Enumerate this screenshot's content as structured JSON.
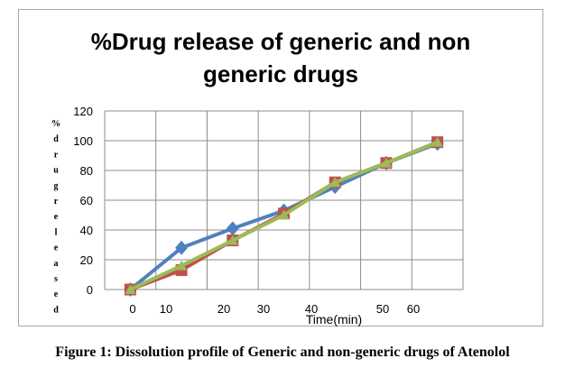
{
  "chart_data": {
    "type": "line",
    "title_lines": [
      "%Drug release of  generic and non",
      "generic drugs"
    ],
    "ylabel_chars": [
      "%",
      "d",
      "r",
      "u",
      "g",
      "r",
      "e",
      "l",
      "e",
      "a",
      "s",
      "e",
      "d"
    ],
    "xlabel": "Time(min)",
    "ylim": [
      0,
      120
    ],
    "yticks": [
      "0",
      "20",
      "40",
      "60",
      "80",
      "100",
      "120"
    ],
    "xticks": [
      "0",
      "10",
      "20",
      "30",
      "40",
      "50",
      "60"
    ],
    "categories": [
      "0",
      "10",
      "20",
      "30",
      "40",
      "50",
      "60"
    ],
    "grid": true,
    "series": [
      {
        "color": "#4f81bd",
        "marker": "diamond",
        "values": [
          0,
          28,
          41,
          53,
          69,
          85,
          98
        ]
      },
      {
        "color": "#c0504d",
        "marker": "square",
        "values": [
          0,
          13,
          33,
          51,
          72,
          85,
          99
        ]
      },
      {
        "color": "#9bbb59",
        "marker": "triangle",
        "values": [
          0,
          16,
          33,
          50,
          72,
          85,
          99
        ]
      }
    ]
  },
  "caption": "Figure 1: Dissolution profile of Generic and non-generic drugs of Atenolol"
}
